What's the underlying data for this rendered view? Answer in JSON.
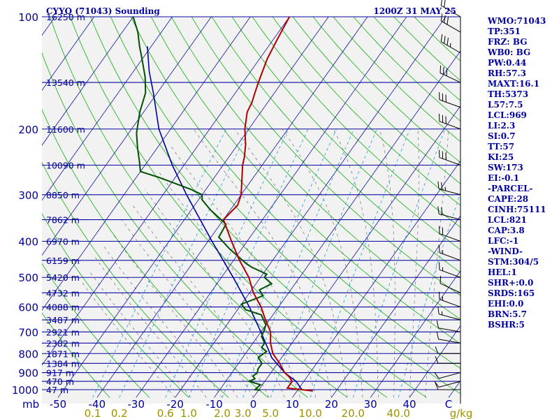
{
  "header": {
    "title": "CYYQ (71043) Sounding",
    "time": "1200Z 31 MAY 25"
  },
  "chart_data": {
    "type": "skew-t",
    "pressure_ticks": [
      100,
      200,
      300,
      400,
      500,
      600,
      700,
      800,
      900,
      1000
    ],
    "pressure_unit": "mb",
    "temperature_ticks": [
      -50,
      -40,
      -30,
      -20,
      -10,
      0,
      10,
      20,
      30,
      40
    ],
    "temperature_end_label": "C",
    "mixing_ratio_labels": [
      "0.1",
      "0.2",
      "0.6",
      "1.0",
      "2.0",
      "3.0",
      "5.0",
      "10.0",
      "20.0",
      "40.0"
    ],
    "mixing_ratio_values": [
      0.1,
      0.2,
      0.6,
      1.0,
      2.0,
      3.0,
      5.0,
      10.0,
      20.0,
      40.0
    ],
    "mixing_ratio_unit": "g/kg",
    "height_labels": [
      {
        "p": 100,
        "label": "16250 m"
      },
      {
        "p": 150,
        "label": "13540 m"
      },
      {
        "p": 200,
        "label": "11600 m"
      },
      {
        "p": 250,
        "label": "10090 m"
      },
      {
        "p": 300,
        "label": "8850 m"
      },
      {
        "p": 350,
        "label": "7862 m"
      },
      {
        "p": 400,
        "label": "6970 m"
      },
      {
        "p": 450,
        "label": "6159 m"
      },
      {
        "p": 500,
        "label": "5420 m"
      },
      {
        "p": 550,
        "label": "4732 m"
      },
      {
        "p": 600,
        "label": "4088 m"
      },
      {
        "p": 650,
        "label": "3487 m"
      },
      {
        "p": 700,
        "label": "2921 m"
      },
      {
        "p": 750,
        "label": "2382 m"
      },
      {
        "p": 800,
        "label": "1871 m"
      },
      {
        "p": 850,
        "label": "1384 m"
      },
      {
        "p": 900,
        "label": "917 m"
      },
      {
        "p": 950,
        "label": "470 m"
      },
      {
        "p": 1000,
        "label": "47 m"
      }
    ],
    "temperature_profile": [
      [
        1008,
        14
      ],
      [
        1000,
        11
      ],
      [
        990,
        7
      ],
      [
        950,
        7
      ],
      [
        925,
        5.5
      ],
      [
        900,
        3.5
      ],
      [
        850,
        0.5
      ],
      [
        800,
        -3
      ],
      [
        750,
        -5.5
      ],
      [
        700,
        -7.5
      ],
      [
        650,
        -11
      ],
      [
        600,
        -14.5
      ],
      [
        550,
        -19
      ],
      [
        500,
        -23
      ],
      [
        450,
        -28.5
      ],
      [
        400,
        -34
      ],
      [
        350,
        -40
      ],
      [
        320,
        -39
      ],
      [
        300,
        -40
      ],
      [
        250,
        -45
      ],
      [
        238,
        -46
      ],
      [
        220,
        -48
      ],
      [
        200,
        -51
      ],
      [
        180,
        -53.5
      ],
      [
        170,
        -54
      ],
      [
        160,
        -55
      ],
      [
        150,
        -56
      ],
      [
        130,
        -58
      ],
      [
        115,
        -59
      ],
      [
        100,
        -60
      ]
    ],
    "dewpoint_profile": [
      [
        1003,
        0.5
      ],
      [
        1000,
        -1
      ],
      [
        970,
        -0.5
      ],
      [
        950,
        -4
      ],
      [
        935,
        -3
      ],
      [
        920,
        -4
      ],
      [
        900,
        -3.5
      ],
      [
        880,
        -4
      ],
      [
        850,
        -4
      ],
      [
        820,
        -6
      ],
      [
        790,
        -5
      ],
      [
        770,
        -7
      ],
      [
        750,
        -7
      ],
      [
        720,
        -9
      ],
      [
        690,
        -9.5
      ],
      [
        670,
        -10
      ],
      [
        650,
        -11.5
      ],
      [
        630,
        -13
      ],
      [
        610,
        -18
      ],
      [
        590,
        -20
      ],
      [
        560,
        -16
      ],
      [
        540,
        -18
      ],
      [
        520,
        -16
      ],
      [
        500,
        -19
      ],
      [
        490,
        -19
      ],
      [
        470,
        -24
      ],
      [
        460,
        -26
      ],
      [
        420,
        -33
      ],
      [
        390,
        -38
      ],
      [
        360,
        -38.5
      ],
      [
        330,
        -45
      ],
      [
        310,
        -49
      ],
      [
        300,
        -50
      ],
      [
        290,
        -54
      ],
      [
        270,
        -64
      ],
      [
        260,
        -70
      ],
      [
        245,
        -72
      ],
      [
        225,
        -75
      ],
      [
        205,
        -78
      ],
      [
        180,
        -81
      ],
      [
        160,
        -83
      ],
      [
        145,
        -86
      ],
      [
        130,
        -90
      ],
      [
        120,
        -93
      ],
      [
        110,
        -96
      ],
      [
        100,
        -100
      ]
    ],
    "parcel_path": [
      [
        1000,
        11
      ],
      [
        950,
        8
      ],
      [
        900,
        3.5
      ],
      [
        821,
        -2.5
      ],
      [
        700,
        -10
      ],
      [
        600,
        -17.5
      ],
      [
        500,
        -27
      ],
      [
        400,
        -39
      ],
      [
        300,
        -54
      ],
      [
        250,
        -63
      ],
      [
        200,
        -73
      ],
      [
        160,
        -81
      ],
      [
        140,
        -86
      ],
      [
        120,
        -91
      ]
    ],
    "wind_barbs": [
      [
        1000,
        270,
        10
      ],
      [
        950,
        255,
        10
      ],
      [
        900,
        255,
        10
      ],
      [
        850,
        270,
        10
      ],
      [
        800,
        270,
        10
      ],
      [
        750,
        280,
        10
      ],
      [
        700,
        280,
        10
      ],
      [
        650,
        285,
        15
      ],
      [
        600,
        290,
        15
      ],
      [
        550,
        295,
        10
      ],
      [
        500,
        290,
        15
      ],
      [
        450,
        290,
        15
      ],
      [
        400,
        290,
        20
      ],
      [
        350,
        285,
        20
      ],
      [
        300,
        285,
        25
      ],
      [
        250,
        290,
        30
      ],
      [
        200,
        290,
        30
      ],
      [
        175,
        290,
        30
      ],
      [
        150,
        295,
        30
      ],
      [
        125,
        300,
        35
      ],
      [
        110,
        300,
        30
      ],
      [
        100,
        300,
        20
      ]
    ]
  },
  "stats": [
    "WMO:71043",
    "TP:351",
    "FRZ: BG",
    "WB0: BG",
    "PW:0.44",
    "RH:57.3",
    "MAXT:16.1",
    "TH:5373",
    "L57:7.5",
    "LCL:969",
    "LI:2.3",
    "SI:0.7",
    "TT:57",
    "KI:25",
    "SW:173",
    "EI:-0.1",
    "-PARCEL-",
    "CAPE:28",
    "CINH:75111",
    "LCL:821",
    "CAP:3.8",
    "LFC:-1",
    "-WIND-",
    "STM:304/5",
    "HEL:1",
    "SHR+:0.0",
    "SRDS:165",
    "EHI:0.0",
    "BRN:5.7",
    "BSHR:5"
  ]
}
